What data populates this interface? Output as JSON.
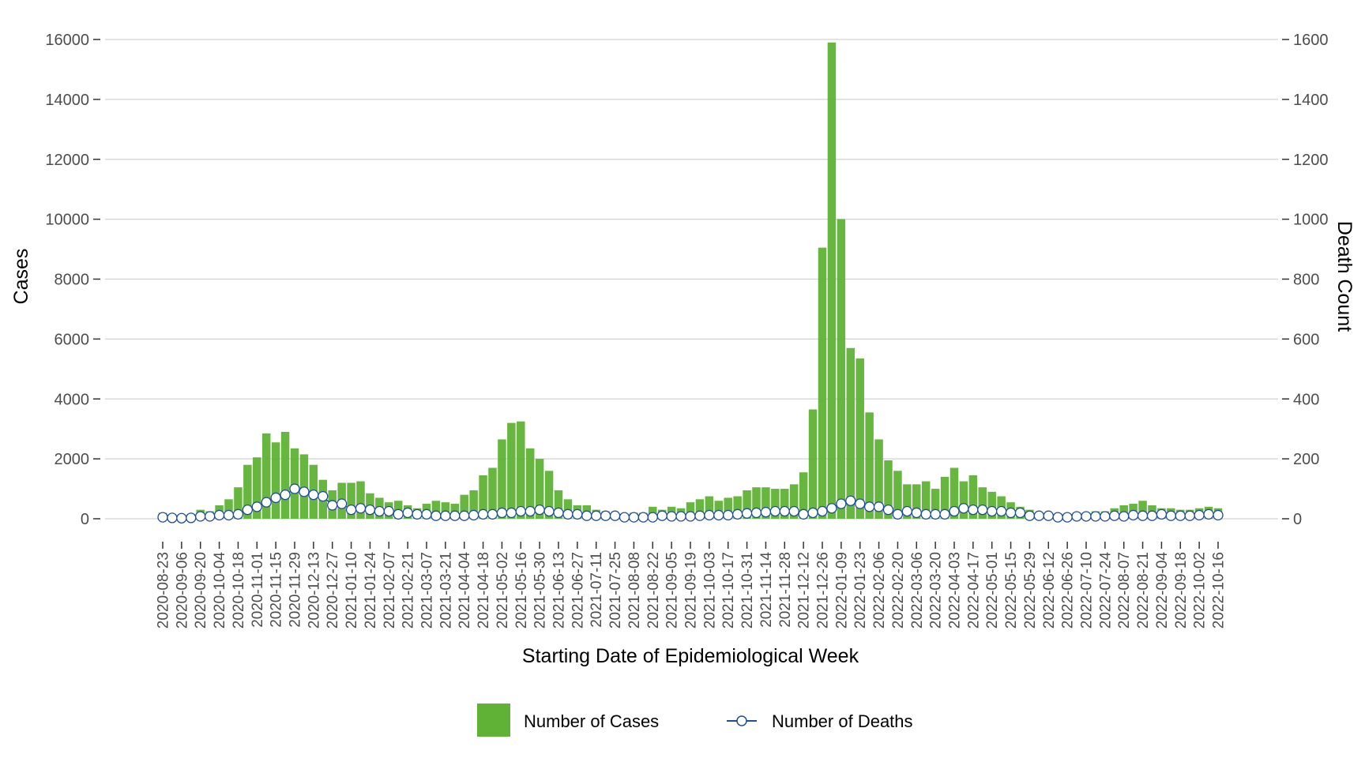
{
  "chart_data": {
    "type": "bar",
    "title": "",
    "xlabel": "Starting Date of Epidemiological Week",
    "ylabel": "Cases",
    "y2label": "Death Count",
    "ylim": [
      0,
      16000
    ],
    "y2lim": [
      0,
      1600
    ],
    "yticks": [
      0,
      2000,
      4000,
      6000,
      8000,
      10000,
      12000,
      14000,
      16000
    ],
    "y2ticks": [
      0,
      200,
      400,
      600,
      800,
      1000,
      1200,
      1400,
      1600
    ],
    "grid": true,
    "legend_position": "bottom",
    "start_week": "2020-08-23",
    "num_weeks": 113,
    "x_tick_labels": [
      "2020-08-23",
      "2020-09-06",
      "2020-09-20",
      "2020-10-04",
      "2020-10-18",
      "2020-11-01",
      "2020-11-15",
      "2020-11-29",
      "2020-12-13",
      "2020-12-27",
      "2021-01-10",
      "2021-01-24",
      "2021-02-07",
      "2021-02-21",
      "2021-03-07",
      "2021-03-21",
      "2021-04-04",
      "2021-04-18",
      "2021-05-02",
      "2021-05-16",
      "2021-05-30",
      "2021-06-13",
      "2021-06-27",
      "2021-07-11",
      "2021-07-25",
      "2021-08-08",
      "2021-08-22",
      "2021-09-05",
      "2021-09-19",
      "2021-10-03",
      "2021-10-17",
      "2021-10-31",
      "2021-11-14",
      "2021-11-28",
      "2021-12-12",
      "2021-12-26",
      "2022-01-09",
      "2022-01-23",
      "2022-02-06",
      "2022-02-20",
      "2022-03-06",
      "2022-03-20",
      "2022-04-03",
      "2022-04-17",
      "2022-05-01",
      "2022-05-15",
      "2022-05-29",
      "2022-06-12",
      "2022-06-26",
      "2022-07-10",
      "2022-07-24",
      "2022-08-07",
      "2022-08-21",
      "2022-09-04",
      "2022-09-18",
      "2022-10-02",
      "2022-10-16"
    ],
    "series": [
      {
        "name": "Number of Cases",
        "type": "bar",
        "axis": "left",
        "color": "#5fb236",
        "values": [
          200,
          100,
          100,
          150,
          300,
          250,
          450,
          650,
          1050,
          1800,
          2050,
          2850,
          2550,
          2900,
          2350,
          2150,
          1800,
          1300,
          950,
          1200,
          1200,
          1250,
          850,
          700,
          550,
          600,
          450,
          350,
          500,
          600,
          550,
          500,
          800,
          950,
          1450,
          1700,
          2650,
          3200,
          3250,
          2350,
          2000,
          1600,
          950,
          650,
          450,
          450,
          300,
          250,
          200,
          150,
          200,
          200,
          400,
          300,
          400,
          350,
          550,
          650,
          750,
          600,
          700,
          750,
          950,
          1050,
          1050,
          1000,
          1000,
          1150,
          1550,
          3650,
          9050,
          15900,
          10000,
          5700,
          5350,
          3550,
          2650,
          1950,
          1600,
          1150,
          1150,
          1250,
          1000,
          1400,
          1700,
          1250,
          1450,
          1050,
          900,
          750,
          550,
          400,
          300,
          200,
          150,
          100,
          100,
          200,
          200,
          250,
          250,
          350,
          450,
          500,
          600,
          450,
          350,
          350,
          300,
          300,
          350,
          400,
          350
        ]
      },
      {
        "name": "Number of Deaths",
        "type": "line",
        "axis": "right",
        "color": "#1f4e99",
        "values": [
          5,
          3,
          2,
          3,
          8,
          8,
          12,
          12,
          15,
          30,
          40,
          55,
          70,
          80,
          100,
          90,
          80,
          75,
          45,
          50,
          30,
          35,
          30,
          25,
          25,
          15,
          20,
          15,
          15,
          10,
          10,
          10,
          10,
          12,
          15,
          15,
          20,
          20,
          25,
          25,
          30,
          25,
          20,
          15,
          15,
          10,
          10,
          10,
          10,
          5,
          5,
          5,
          5,
          10,
          8,
          8,
          8,
          10,
          12,
          12,
          12,
          15,
          18,
          20,
          22,
          25,
          25,
          25,
          15,
          20,
          25,
          35,
          50,
          60,
          50,
          40,
          40,
          30,
          15,
          25,
          20,
          15,
          15,
          15,
          25,
          35,
          30,
          30,
          25,
          25,
          20,
          20,
          10,
          10,
          10,
          5,
          5,
          8,
          8,
          8,
          8,
          10,
          8,
          12,
          10,
          10,
          15,
          10,
          10,
          10,
          12,
          15,
          12
        ]
      }
    ]
  }
}
